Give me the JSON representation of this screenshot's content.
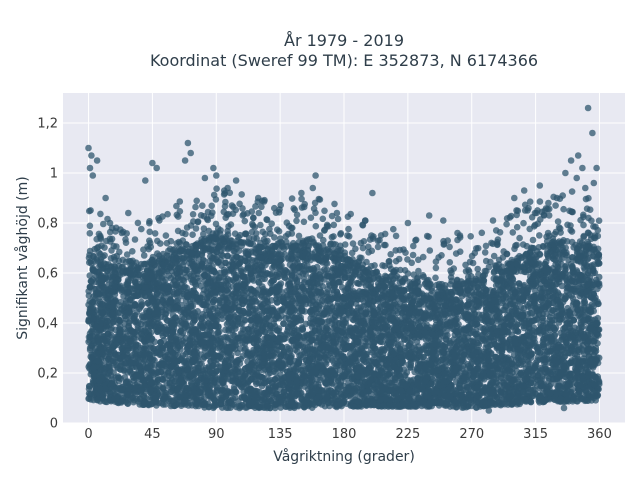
{
  "chart_data": {
    "type": "scatter",
    "title": "År 1979 - 2019",
    "subtitle": "Koordinat (Sweref 99 TM): E 352873, N 6174366",
    "xlabel": "Vågriktning (grader)",
    "ylabel": "Signifikant våghöjd (m)",
    "xlim": [
      -18,
      378
    ],
    "ylim": [
      0,
      1.32
    ],
    "xticks": [
      0,
      45,
      90,
      135,
      180,
      225,
      270,
      315,
      360
    ],
    "xtick_labels": [
      "0",
      "45",
      "90",
      "135",
      "180",
      "225",
      "270",
      "315",
      "360"
    ],
    "yticks": [
      0,
      0.2,
      0.4,
      0.6,
      0.8,
      1.0,
      1.2
    ],
    "ytick_labels": [
      "0",
      "0,2",
      "0,4",
      "0,6",
      "0,8",
      "1",
      "1,2"
    ],
    "grid": true,
    "marker_color": "#2f566e",
    "plot_background": "#e8e9f2",
    "envelope": {
      "x": [
        0,
        20,
        45,
        70,
        90,
        110,
        135,
        160,
        180,
        200,
        225,
        250,
        270,
        290,
        315,
        340,
        360
      ],
      "y_min": [
        0.09,
        0.08,
        0.07,
        0.065,
        0.06,
        0.06,
        0.06,
        0.06,
        0.065,
        0.065,
        0.065,
        0.065,
        0.06,
        0.07,
        0.08,
        0.085,
        0.09
      ],
      "y_max": [
        0.66,
        0.62,
        0.64,
        0.7,
        0.74,
        0.72,
        0.7,
        0.71,
        0.66,
        0.6,
        0.56,
        0.55,
        0.56,
        0.62,
        0.7,
        0.73,
        0.68
      ]
    },
    "outliers": [
      {
        "x": 0,
        "y": 1.1
      },
      {
        "x": 2,
        "y": 1.07
      },
      {
        "x": 6,
        "y": 1.05
      },
      {
        "x": 1,
        "y": 1.02
      },
      {
        "x": 3,
        "y": 0.99
      },
      {
        "x": 12,
        "y": 0.9
      },
      {
        "x": 28,
        "y": 0.84
      },
      {
        "x": 45,
        "y": 1.04
      },
      {
        "x": 48,
        "y": 1.02
      },
      {
        "x": 40,
        "y": 0.97
      },
      {
        "x": 70,
        "y": 1.12
      },
      {
        "x": 72,
        "y": 1.08
      },
      {
        "x": 68,
        "y": 1.05
      },
      {
        "x": 82,
        "y": 0.98
      },
      {
        "x": 88,
        "y": 1.02
      },
      {
        "x": 90,
        "y": 0.99
      },
      {
        "x": 98,
        "y": 0.94
      },
      {
        "x": 104,
        "y": 0.97
      },
      {
        "x": 120,
        "y": 0.84
      },
      {
        "x": 160,
        "y": 0.99
      },
      {
        "x": 158,
        "y": 0.94
      },
      {
        "x": 150,
        "y": 0.92
      },
      {
        "x": 200,
        "y": 0.92
      },
      {
        "x": 175,
        "y": 0.84
      },
      {
        "x": 195,
        "y": 0.81
      },
      {
        "x": 225,
        "y": 0.8
      },
      {
        "x": 240,
        "y": 0.83
      },
      {
        "x": 250,
        "y": 0.81
      },
      {
        "x": 260,
        "y": 0.76
      },
      {
        "x": 285,
        "y": 0.81
      },
      {
        "x": 300,
        "y": 0.9
      },
      {
        "x": 307,
        "y": 0.93
      },
      {
        "x": 310,
        "y": 0.86
      },
      {
        "x": 318,
        "y": 0.95
      },
      {
        "x": 324,
        "y": 0.88
      },
      {
        "x": 330,
        "y": 0.9
      },
      {
        "x": 336,
        "y": 1.0
      },
      {
        "x": 340,
        "y": 1.05
      },
      {
        "x": 345,
        "y": 1.07
      },
      {
        "x": 348,
        "y": 1.02
      },
      {
        "x": 352,
        "y": 1.26
      },
      {
        "x": 355,
        "y": 1.16
      },
      {
        "x": 358,
        "y": 1.02
      },
      {
        "x": 356,
        "y": 0.96
      },
      {
        "x": 344,
        "y": 0.98
      },
      {
        "x": 350,
        "y": 0.94
      },
      {
        "x": 280,
        "y": 0.5
      },
      {
        "x": 335,
        "y": 0.06
      },
      {
        "x": 282,
        "y": 0.05
      }
    ]
  }
}
